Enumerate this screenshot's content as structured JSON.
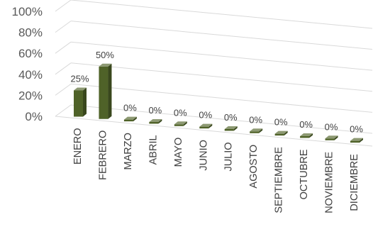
{
  "chart_data": {
    "type": "bar",
    "style": "3d-column",
    "categories": [
      "ENERO",
      "FEBRERO",
      "MARZO",
      "ABRIL",
      "MAYO",
      "JUNIO",
      "JULIO",
      "AGOSTO",
      "SEPTIEMBRE",
      "OCTUBRE",
      "NOVIEMBRE",
      "DICIEMBRE"
    ],
    "values": [
      25,
      50,
      0,
      0,
      0,
      0,
      0,
      0,
      0,
      0,
      0,
      0
    ],
    "data_labels": [
      "25%",
      "50%",
      "0%",
      "0%",
      "0%",
      "0%",
      "0%",
      "0%",
      "0%",
      "0%",
      "0%",
      "0%"
    ],
    "y_ticks": [
      "0%",
      "20%",
      "40%",
      "60%",
      "80%",
      "100%"
    ],
    "ylim": [
      0,
      100
    ],
    "grid": true,
    "legend": "none",
    "bar_color": "#4f6228"
  }
}
